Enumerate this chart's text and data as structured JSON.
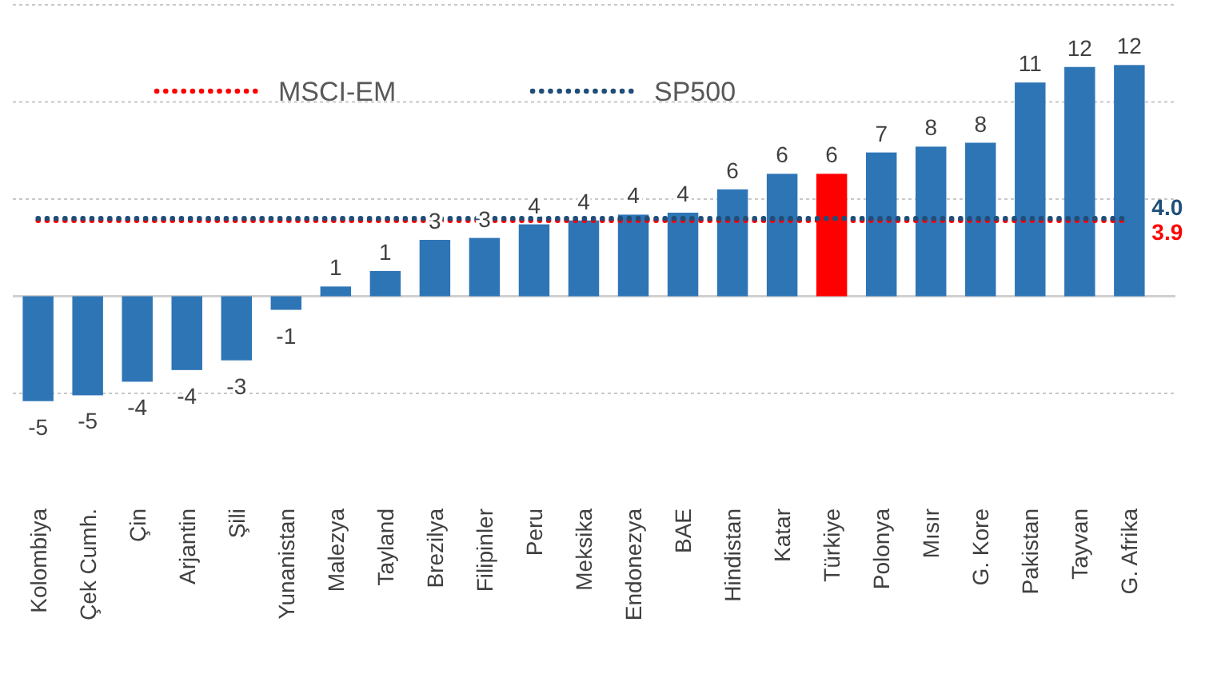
{
  "chart_data": {
    "type": "bar",
    "categories": [
      "Kolombiya",
      "Çek Cumh.",
      "Çin",
      "Arjantin",
      "Şili",
      "Yunanistan",
      "Malezya",
      "Tayland",
      "Brezilya",
      "Filipinler",
      "Peru",
      "Meksika",
      "Endonezya",
      "BAE",
      "Hindistan",
      "Katar",
      "Türkiye",
      "Polonya",
      "Mısır",
      "G. Kore",
      "Pakistan",
      "Tayvan",
      "G. Afrika"
    ],
    "series": [
      {
        "colors": [
          "#2e75b6",
          "#2e75b6",
          "#2e75b6",
          "#2e75b6",
          "#2e75b6",
          "#2e75b6",
          "#2e75b6",
          "#2e75b6",
          "#2e75b6",
          "#2e75b6",
          "#2e75b6",
          "#2e75b6",
          "#2e75b6",
          "#2e75b6",
          "#2e75b6",
          "#2e75b6",
          "#ff0000",
          "#2e75b6",
          "#2e75b6",
          "#2e75b6",
          "#2e75b6",
          "#2e75b6",
          "#2e75b6"
        ],
        "values": [
          -5.4,
          -5.1,
          -4.4,
          -3.8,
          -3.3,
          -0.7,
          0.5,
          1.3,
          2.9,
          3.0,
          3.7,
          3.9,
          4.2,
          4.3,
          5.5,
          6.3,
          6.3,
          7.4,
          7.7,
          7.9,
          11.0,
          11.8,
          11.9
        ],
        "value_labels": [
          "-5",
          "-5",
          "-4",
          "-4",
          "-3",
          "-1",
          "1",
          "1",
          "3",
          "3",
          "4",
          "4",
          "4",
          "4",
          "6",
          "6",
          "6",
          "7",
          "8",
          "8",
          "11",
          "12",
          "12"
        ]
      },
      {
        "type": "line",
        "name": "MSCI-EM",
        "color": "#ff0000",
        "line_style": "dotted",
        "values": [
          3.9,
          3.9,
          3.9,
          3.9,
          3.9,
          3.9,
          3.9,
          3.9,
          3.9,
          3.9,
          3.9,
          3.9,
          3.9,
          3.9,
          3.9,
          3.9,
          3.9,
          3.9,
          3.9,
          3.9,
          3.9,
          3.9,
          3.9
        ],
        "value_labels": [
          null,
          null,
          null,
          null,
          null,
          null,
          null,
          null,
          null,
          null,
          null,
          null,
          null,
          null,
          null,
          null,
          null,
          null,
          null,
          null,
          null,
          null,
          "3.9"
        ]
      },
      {
        "type": "line",
        "name": "SP500",
        "color": "#1f4e79",
        "line_style": "dotted",
        "values": [
          4.0,
          4.0,
          4.0,
          4.0,
          4.0,
          4.0,
          4.0,
          4.0,
          4.0,
          4.0,
          4.0,
          4.0,
          4.0,
          4.0,
          4.0,
          4.0,
          4.0,
          4.0,
          4.0,
          4.0,
          4.0,
          4.0,
          4.0
        ],
        "value_labels": [
          null,
          null,
          null,
          null,
          null,
          null,
          null,
          null,
          null,
          null,
          null,
          null,
          null,
          null,
          null,
          null,
          null,
          null,
          null,
          null,
          null,
          null,
          "4.0"
        ]
      }
    ],
    "yticks": [
      {
        "value": -5,
        "label": null
      },
      {
        "value": 0,
        "label": null
      },
      {
        "value": 5,
        "label": null
      },
      {
        "value": 10,
        "label": null
      },
      {
        "value": 15,
        "label": null
      }
    ],
    "tick_labels": "x",
    "grid": "y",
    "legend": "top left"
  }
}
